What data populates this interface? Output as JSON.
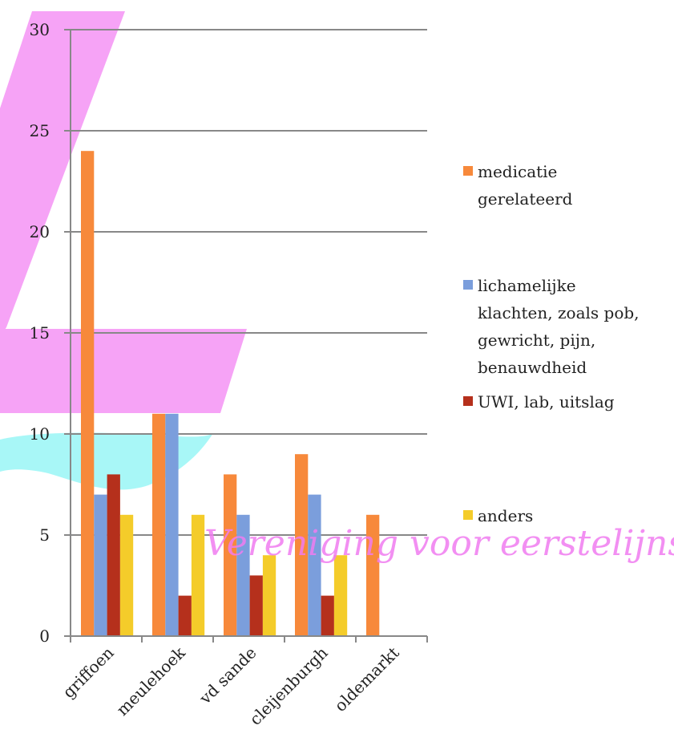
{
  "watermark": "Vereniging voor eerstelijnszorg",
  "colors": {
    "grid": "#888888",
    "axis": "#888888",
    "deco_magenta": "#f6a3f6",
    "deco_cyan": "#a8f7f7"
  },
  "chart_data": {
    "type": "bar",
    "title": "",
    "xlabel": "",
    "ylabel": "",
    "ylim": [
      0,
      30
    ],
    "yticks": [
      "0",
      "5",
      "10",
      "15",
      "20",
      "25",
      "30"
    ],
    "grid": true,
    "legend_position": "right",
    "categories": [
      "griffoen",
      "meulehoek",
      "vd sande",
      "cleijenburgh",
      "oldemarkt"
    ],
    "series": [
      {
        "name": "medicatie gerelateerd",
        "legend_lines": [
          "medicatie",
          "gerelateerd"
        ],
        "color": "#f7893b",
        "values": [
          24,
          11,
          8,
          9,
          6
        ]
      },
      {
        "name": "lichamelijke klachten, zoals pob, gewricht, pijn, benauwdheid",
        "legend_lines": [
          "lichamelijke",
          "klachten, zoals pob,",
          "gewricht, pijn,",
          "benauwdheid"
        ],
        "color": "#7b9edc",
        "values": [
          7,
          11,
          6,
          7,
          0
        ]
      },
      {
        "name": "UWI, lab, uitslag",
        "legend_lines": [
          "UWI, lab, uitslag"
        ],
        "color": "#b5301c",
        "values": [
          8,
          2,
          3,
          2,
          0
        ]
      },
      {
        "name": "anders",
        "legend_lines": [
          "anders"
        ],
        "color": "#f4cc2a",
        "values": [
          6,
          6,
          4,
          4,
          0
        ]
      }
    ]
  }
}
